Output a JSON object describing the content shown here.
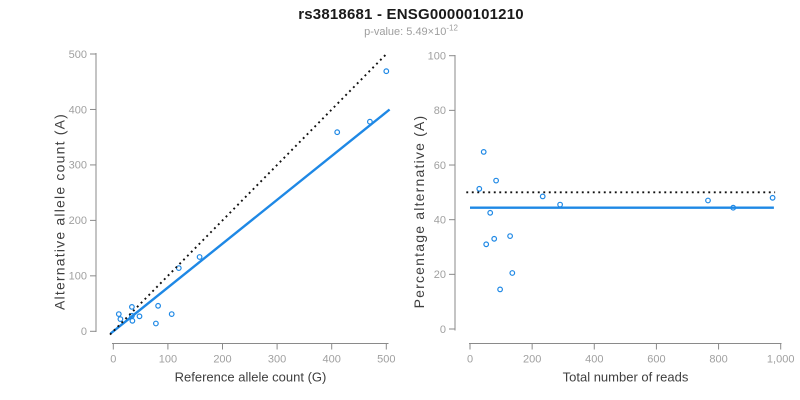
{
  "header": {
    "title": "rs3818681 - ENSG00000101210",
    "pvalue_base": "p-value: 5.49×10",
    "pvalue_exponent": "-12"
  },
  "colors": {
    "accent_blue": "#1E88E5",
    "dotted_black": "#111111",
    "axis_gray": "#8a8a8a",
    "tick_label_gray": "#a0a0a0",
    "axis_title_gray": "#3f3f3f",
    "title_black": "#1a1a1a",
    "subtitle_gray": "#9e9e9e"
  },
  "chart_data": [
    {
      "type": "scatter",
      "name": "allele-counts",
      "xlabel": "Reference allele count (G)",
      "ylabel": "Alternative allele count (A)",
      "xlim": [
        0,
        500
      ],
      "ylim": [
        0,
        500
      ],
      "xticks": [
        0,
        100,
        200,
        300,
        400,
        500
      ],
      "xtick_labels": [
        "0",
        "100",
        "200",
        "300",
        "400",
        "500"
      ],
      "yticks": [
        0,
        100,
        200,
        300,
        400,
        500
      ],
      "ytick_labels": [
        "0",
        "100",
        "200",
        "300",
        "400",
        "500"
      ],
      "grid": false,
      "marker": "open-circle",
      "point_color": "#1E88E5",
      "points": [
        [
          10,
          31
        ],
        [
          13,
          22
        ],
        [
          34,
          44
        ],
        [
          34,
          28
        ],
        [
          35,
          19
        ],
        [
          48,
          27
        ],
        [
          82,
          46
        ],
        [
          78,
          14
        ],
        [
          107,
          31
        ],
        [
          120,
          114
        ],
        [
          158,
          134
        ],
        [
          410,
          359
        ],
        [
          470,
          378
        ],
        [
          500,
          469
        ]
      ],
      "lines": [
        {
          "name": "regression-line",
          "style": "solid",
          "color": "#1E88E5",
          "x": [
            -5,
            506
          ],
          "y": [
            -4,
            400
          ]
        },
        {
          "name": "identity-line",
          "style": "dotted",
          "color": "#111111",
          "x": [
            -6,
            499
          ],
          "y": [
            -6,
            499
          ]
        }
      ]
    },
    {
      "type": "scatter",
      "name": "percentage-alternative",
      "xlabel": "Total number of reads",
      "ylabel": "Percentage alternative (A)",
      "xlim": [
        0,
        1000
      ],
      "ylim": [
        0,
        100
      ],
      "xticks": [
        0,
        200,
        400,
        600,
        800,
        1000
      ],
      "xtick_labels": [
        "0",
        "200",
        "400",
        "600",
        "800",
        "1,000"
      ],
      "yticks": [
        0,
        20,
        40,
        60,
        80,
        100
      ],
      "ytick_labels": [
        "0",
        "20",
        "40",
        "60",
        "80",
        "100"
      ],
      "grid": false,
      "marker": "open-circle",
      "point_color": "#1E88E5",
      "points": [
        [
          44,
          64.8
        ],
        [
          30,
          51.3
        ],
        [
          84,
          54.3
        ],
        [
          65,
          42.5
        ],
        [
          52,
          31
        ],
        [
          78,
          33
        ],
        [
          129,
          34
        ],
        [
          97,
          14.5
        ],
        [
          136,
          20.5
        ],
        [
          234,
          48.5
        ],
        [
          290,
          45.5
        ],
        [
          766,
          47
        ],
        [
          847,
          44.4
        ],
        [
          974,
          48
        ]
      ],
      "lines": [
        {
          "name": "mean-line",
          "style": "solid",
          "color": "#1E88E5",
          "x": [
            0,
            978
          ],
          "y": [
            44.4,
            44.4
          ]
        },
        {
          "name": "expected-line",
          "style": "dotted",
          "color": "#111111",
          "x": [
            -12,
            982
          ],
          "y": [
            50,
            50
          ]
        }
      ]
    }
  ]
}
